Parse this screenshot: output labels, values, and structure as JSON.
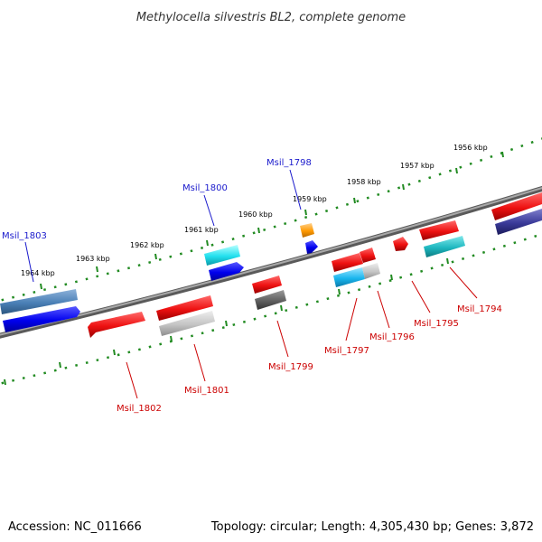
{
  "title": "Methylocella silvestris BL2, complete genome",
  "footer": {
    "accession": "Accession: NC_011666",
    "summary": "Topology: circular; Length: 4,305,430 bp; Genes: 3,872"
  },
  "scale_labels": [
    "1956 kbp",
    "1957 kbp",
    "1958 kbp",
    "1959 kbp",
    "1960 kbp",
    "1961 kbp",
    "1962 kbp",
    "1963 kbp",
    "1964 kbp"
  ],
  "gene_labels": {
    "msil_1803": "Msil_1803",
    "msil_1800": "Msil_1800",
    "msil_1798": "Msil_1798",
    "msil_1802": "Msil_1802",
    "msil_1801": "Msil_1801",
    "msil_1799": "Msil_1799",
    "msil_1797": "Msil_1797",
    "msil_1796": "Msil_1796",
    "msil_1795": "Msil_1795",
    "msil_1794": "Msil_1794"
  },
  "colors": {
    "forward_label": "#1a1acc",
    "reverse_label": "#cc0000",
    "backbone": "#808080",
    "scale_ticks": "#228b22"
  }
}
